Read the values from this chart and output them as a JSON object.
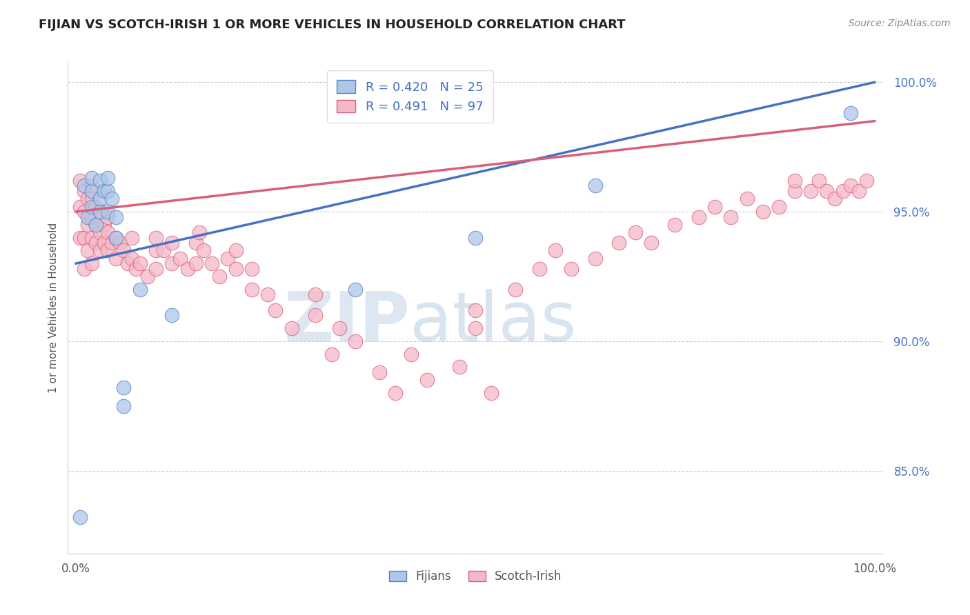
{
  "title": "FIJIAN VS SCOTCH-IRISH 1 OR MORE VEHICLES IN HOUSEHOLD CORRELATION CHART",
  "source_text": "Source: ZipAtlas.com",
  "ylabel": "1 or more Vehicles in Household",
  "xlim": [
    -0.01,
    1.01
  ],
  "ylim": [
    0.818,
    1.008
  ],
  "yticks": [
    0.85,
    0.9,
    0.95,
    1.0
  ],
  "ytick_labels": [
    "85.0%",
    "90.0%",
    "95.0%",
    "100.0%"
  ],
  "xticks": [
    0.0,
    1.0
  ],
  "xtick_labels": [
    "0.0%",
    "100.0%"
  ],
  "fijian_color": "#aec6e8",
  "scotch_color": "#f5b8c8",
  "fijian_edge_color": "#5585c5",
  "scotch_edge_color": "#d9607a",
  "fijian_line_color": "#4472c4",
  "scotch_line_color": "#d9607a",
  "fijian_R": 0.42,
  "fijian_N": 25,
  "scotch_R": 0.491,
  "scotch_N": 97,
  "watermark_zip": "ZIP",
  "watermark_atlas": "atlas",
  "background_color": "#ffffff",
  "grid_color": "#cccccc",
  "title_color": "#222222",
  "ytick_color": "#4472c4",
  "xtick_color": "#555555",
  "fijian_scatter": [
    [
      0.005,
      0.832
    ],
    [
      0.01,
      0.96
    ],
    [
      0.015,
      0.948
    ],
    [
      0.02,
      0.952
    ],
    [
      0.02,
      0.958
    ],
    [
      0.02,
      0.963
    ],
    [
      0.025,
      0.945
    ],
    [
      0.03,
      0.95
    ],
    [
      0.03,
      0.955
    ],
    [
      0.03,
      0.962
    ],
    [
      0.035,
      0.958
    ],
    [
      0.04,
      0.95
    ],
    [
      0.04,
      0.958
    ],
    [
      0.04,
      0.963
    ],
    [
      0.045,
      0.955
    ],
    [
      0.05,
      0.94
    ],
    [
      0.05,
      0.948
    ],
    [
      0.06,
      0.875
    ],
    [
      0.06,
      0.882
    ],
    [
      0.08,
      0.92
    ],
    [
      0.12,
      0.91
    ],
    [
      0.35,
      0.92
    ],
    [
      0.5,
      0.94
    ],
    [
      0.65,
      0.96
    ],
    [
      0.97,
      0.988
    ]
  ],
  "scotch_scatter": [
    [
      0.005,
      0.94
    ],
    [
      0.005,
      0.952
    ],
    [
      0.005,
      0.962
    ],
    [
      0.01,
      0.928
    ],
    [
      0.01,
      0.94
    ],
    [
      0.01,
      0.95
    ],
    [
      0.01,
      0.958
    ],
    [
      0.015,
      0.935
    ],
    [
      0.015,
      0.945
    ],
    [
      0.015,
      0.955
    ],
    [
      0.02,
      0.93
    ],
    [
      0.02,
      0.94
    ],
    [
      0.02,
      0.948
    ],
    [
      0.02,
      0.955
    ],
    [
      0.02,
      0.96
    ],
    [
      0.025,
      0.938
    ],
    [
      0.025,
      0.945
    ],
    [
      0.025,
      0.952
    ],
    [
      0.03,
      0.935
    ],
    [
      0.03,
      0.942
    ],
    [
      0.03,
      0.95
    ],
    [
      0.035,
      0.938
    ],
    [
      0.035,
      0.945
    ],
    [
      0.04,
      0.935
    ],
    [
      0.04,
      0.942
    ],
    [
      0.04,
      0.948
    ],
    [
      0.045,
      0.938
    ],
    [
      0.05,
      0.932
    ],
    [
      0.05,
      0.94
    ],
    [
      0.055,
      0.938
    ],
    [
      0.06,
      0.935
    ],
    [
      0.065,
      0.93
    ],
    [
      0.07,
      0.932
    ],
    [
      0.07,
      0.94
    ],
    [
      0.075,
      0.928
    ],
    [
      0.08,
      0.93
    ],
    [
      0.09,
      0.925
    ],
    [
      0.1,
      0.928
    ],
    [
      0.1,
      0.935
    ],
    [
      0.1,
      0.94
    ],
    [
      0.11,
      0.935
    ],
    [
      0.12,
      0.93
    ],
    [
      0.12,
      0.938
    ],
    [
      0.13,
      0.932
    ],
    [
      0.14,
      0.928
    ],
    [
      0.15,
      0.93
    ],
    [
      0.15,
      0.938
    ],
    [
      0.155,
      0.942
    ],
    [
      0.16,
      0.935
    ],
    [
      0.17,
      0.93
    ],
    [
      0.18,
      0.925
    ],
    [
      0.19,
      0.932
    ],
    [
      0.2,
      0.928
    ],
    [
      0.2,
      0.935
    ],
    [
      0.22,
      0.92
    ],
    [
      0.22,
      0.928
    ],
    [
      0.24,
      0.918
    ],
    [
      0.25,
      0.912
    ],
    [
      0.27,
      0.905
    ],
    [
      0.3,
      0.91
    ],
    [
      0.3,
      0.918
    ],
    [
      0.32,
      0.895
    ],
    [
      0.33,
      0.905
    ],
    [
      0.35,
      0.9
    ],
    [
      0.38,
      0.888
    ],
    [
      0.4,
      0.88
    ],
    [
      0.42,
      0.895
    ],
    [
      0.44,
      0.885
    ],
    [
      0.48,
      0.89
    ],
    [
      0.5,
      0.905
    ],
    [
      0.5,
      0.912
    ],
    [
      0.52,
      0.88
    ],
    [
      0.55,
      0.92
    ],
    [
      0.58,
      0.928
    ],
    [
      0.6,
      0.935
    ],
    [
      0.62,
      0.928
    ],
    [
      0.65,
      0.932
    ],
    [
      0.68,
      0.938
    ],
    [
      0.7,
      0.942
    ],
    [
      0.72,
      0.938
    ],
    [
      0.75,
      0.945
    ],
    [
      0.78,
      0.948
    ],
    [
      0.8,
      0.952
    ],
    [
      0.82,
      0.948
    ],
    [
      0.84,
      0.955
    ],
    [
      0.86,
      0.95
    ],
    [
      0.88,
      0.952
    ],
    [
      0.9,
      0.958
    ],
    [
      0.9,
      0.962
    ],
    [
      0.92,
      0.958
    ],
    [
      0.93,
      0.962
    ],
    [
      0.94,
      0.958
    ],
    [
      0.95,
      0.955
    ],
    [
      0.96,
      0.958
    ],
    [
      0.97,
      0.96
    ],
    [
      0.98,
      0.958
    ],
    [
      0.99,
      0.962
    ]
  ]
}
